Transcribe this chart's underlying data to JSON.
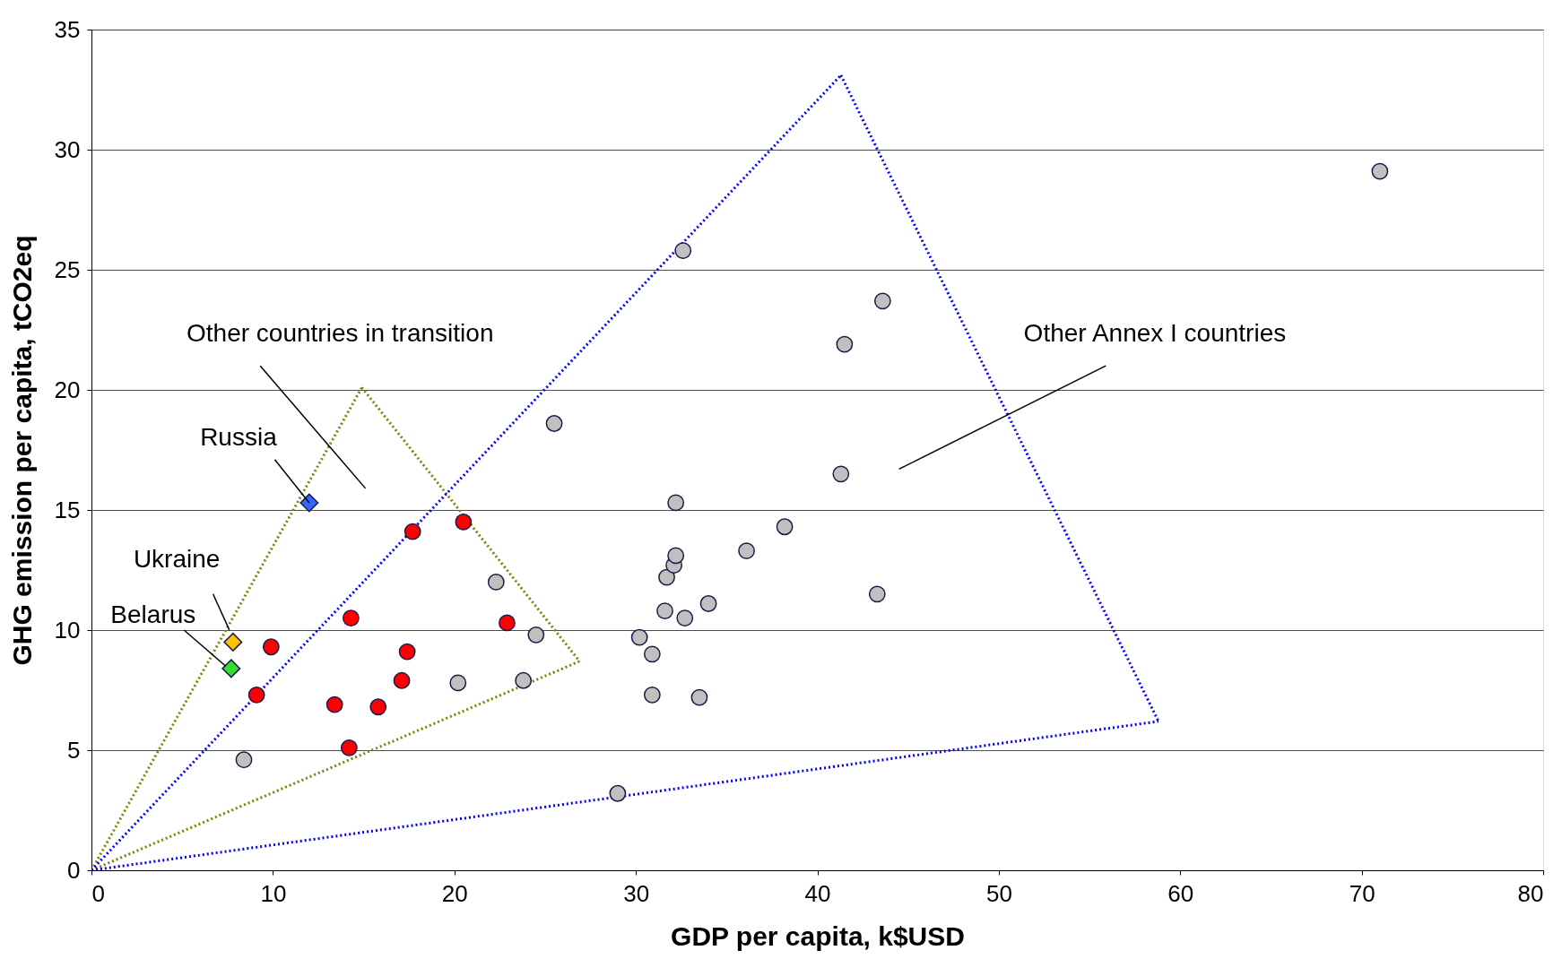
{
  "chart_data": {
    "type": "scatter",
    "xlabel": "GDP per capita, k$USD",
    "ylabel": "GHG emission per capita, tCO2eq",
    "xlim": [
      0,
      80
    ],
    "xticks": [
      0,
      10,
      20,
      30,
      40,
      50,
      60,
      70,
      80
    ],
    "ylim": [
      0,
      35
    ],
    "yticks": [
      0,
      5,
      10,
      15,
      20,
      25,
      30,
      35
    ],
    "grid": "y",
    "legend": false,
    "series": [
      {
        "type": "line",
        "line_style": "dotted",
        "marker": "none",
        "color": "#808000",
        "x": [
          0,
          14.9
        ],
        "values": [
          0,
          20.1
        ]
      },
      {
        "type": "line",
        "line_style": "dotted",
        "marker": "none",
        "color": "#808000",
        "x": [
          14.9,
          26.9
        ],
        "values": [
          20.1,
          8.7
        ]
      },
      {
        "type": "line",
        "line_style": "dotted",
        "marker": "none",
        "color": "#808000",
        "x": [
          0,
          26.9
        ],
        "values": [
          0,
          8.7
        ]
      },
      {
        "type": "line",
        "line_style": "dotted",
        "marker": "none",
        "color": "#0000ff",
        "x": [
          0,
          41.3
        ],
        "values": [
          0,
          33.1
        ]
      },
      {
        "type": "line",
        "line_style": "dotted",
        "marker": "none",
        "color": "#0000ff",
        "x": [
          41.3,
          58.8
        ],
        "values": [
          33.1,
          6.2
        ]
      },
      {
        "type": "line",
        "line_style": "dotted",
        "marker": "none",
        "color": "#0000ff",
        "x": [
          0,
          58.8
        ],
        "values": [
          0,
          6.2
        ]
      },
      {
        "marker": "circle",
        "color": "#c0c0c0",
        "x": [
          8.4,
          20.2,
          22.3,
          23.8,
          24.5,
          25.5,
          29.0,
          30.2,
          30.9,
          30.9,
          31.6,
          31.7,
          32.1,
          32.2,
          32.2,
          32.6,
          32.7,
          33.5,
          34.0,
          36.1,
          38.2,
          41.3,
          41.5,
          43.3,
          43.6,
          71.0
        ],
        "values": [
          4.6,
          7.8,
          12.0,
          7.9,
          9.8,
          18.6,
          3.2,
          9.7,
          9.0,
          7.3,
          10.8,
          12.2,
          12.7,
          13.1,
          15.3,
          25.8,
          10.5,
          7.2,
          11.1,
          13.3,
          14.3,
          16.5,
          21.9,
          11.5,
          23.7,
          29.1
        ]
      },
      {
        "marker": "circle",
        "color": "#ff0000",
        "x": [
          9.1,
          9.9,
          13.4,
          14.2,
          14.3,
          15.8,
          17.1,
          17.4,
          17.7,
          20.5,
          22.9
        ],
        "values": [
          7.3,
          9.3,
          6.9,
          5.1,
          10.5,
          6.8,
          7.9,
          9.1,
          14.1,
          14.5,
          10.3
        ]
      },
      {
        "marker": "diamond",
        "name": "Russia",
        "color": "#3366ff",
        "x": [
          12.0
        ],
        "values": [
          15.3
        ]
      },
      {
        "marker": "diamond",
        "name": "Ukraine",
        "color": "#ffc000",
        "x": [
          7.8
        ],
        "values": [
          9.5
        ]
      },
      {
        "marker": "diamond",
        "name": "Belarus",
        "color": "#33dd33",
        "x": [
          7.7
        ],
        "values": [
          8.4
        ]
      }
    ],
    "annotations": [
      "Other countries in transition",
      "Other Annex I countries"
    ]
  }
}
